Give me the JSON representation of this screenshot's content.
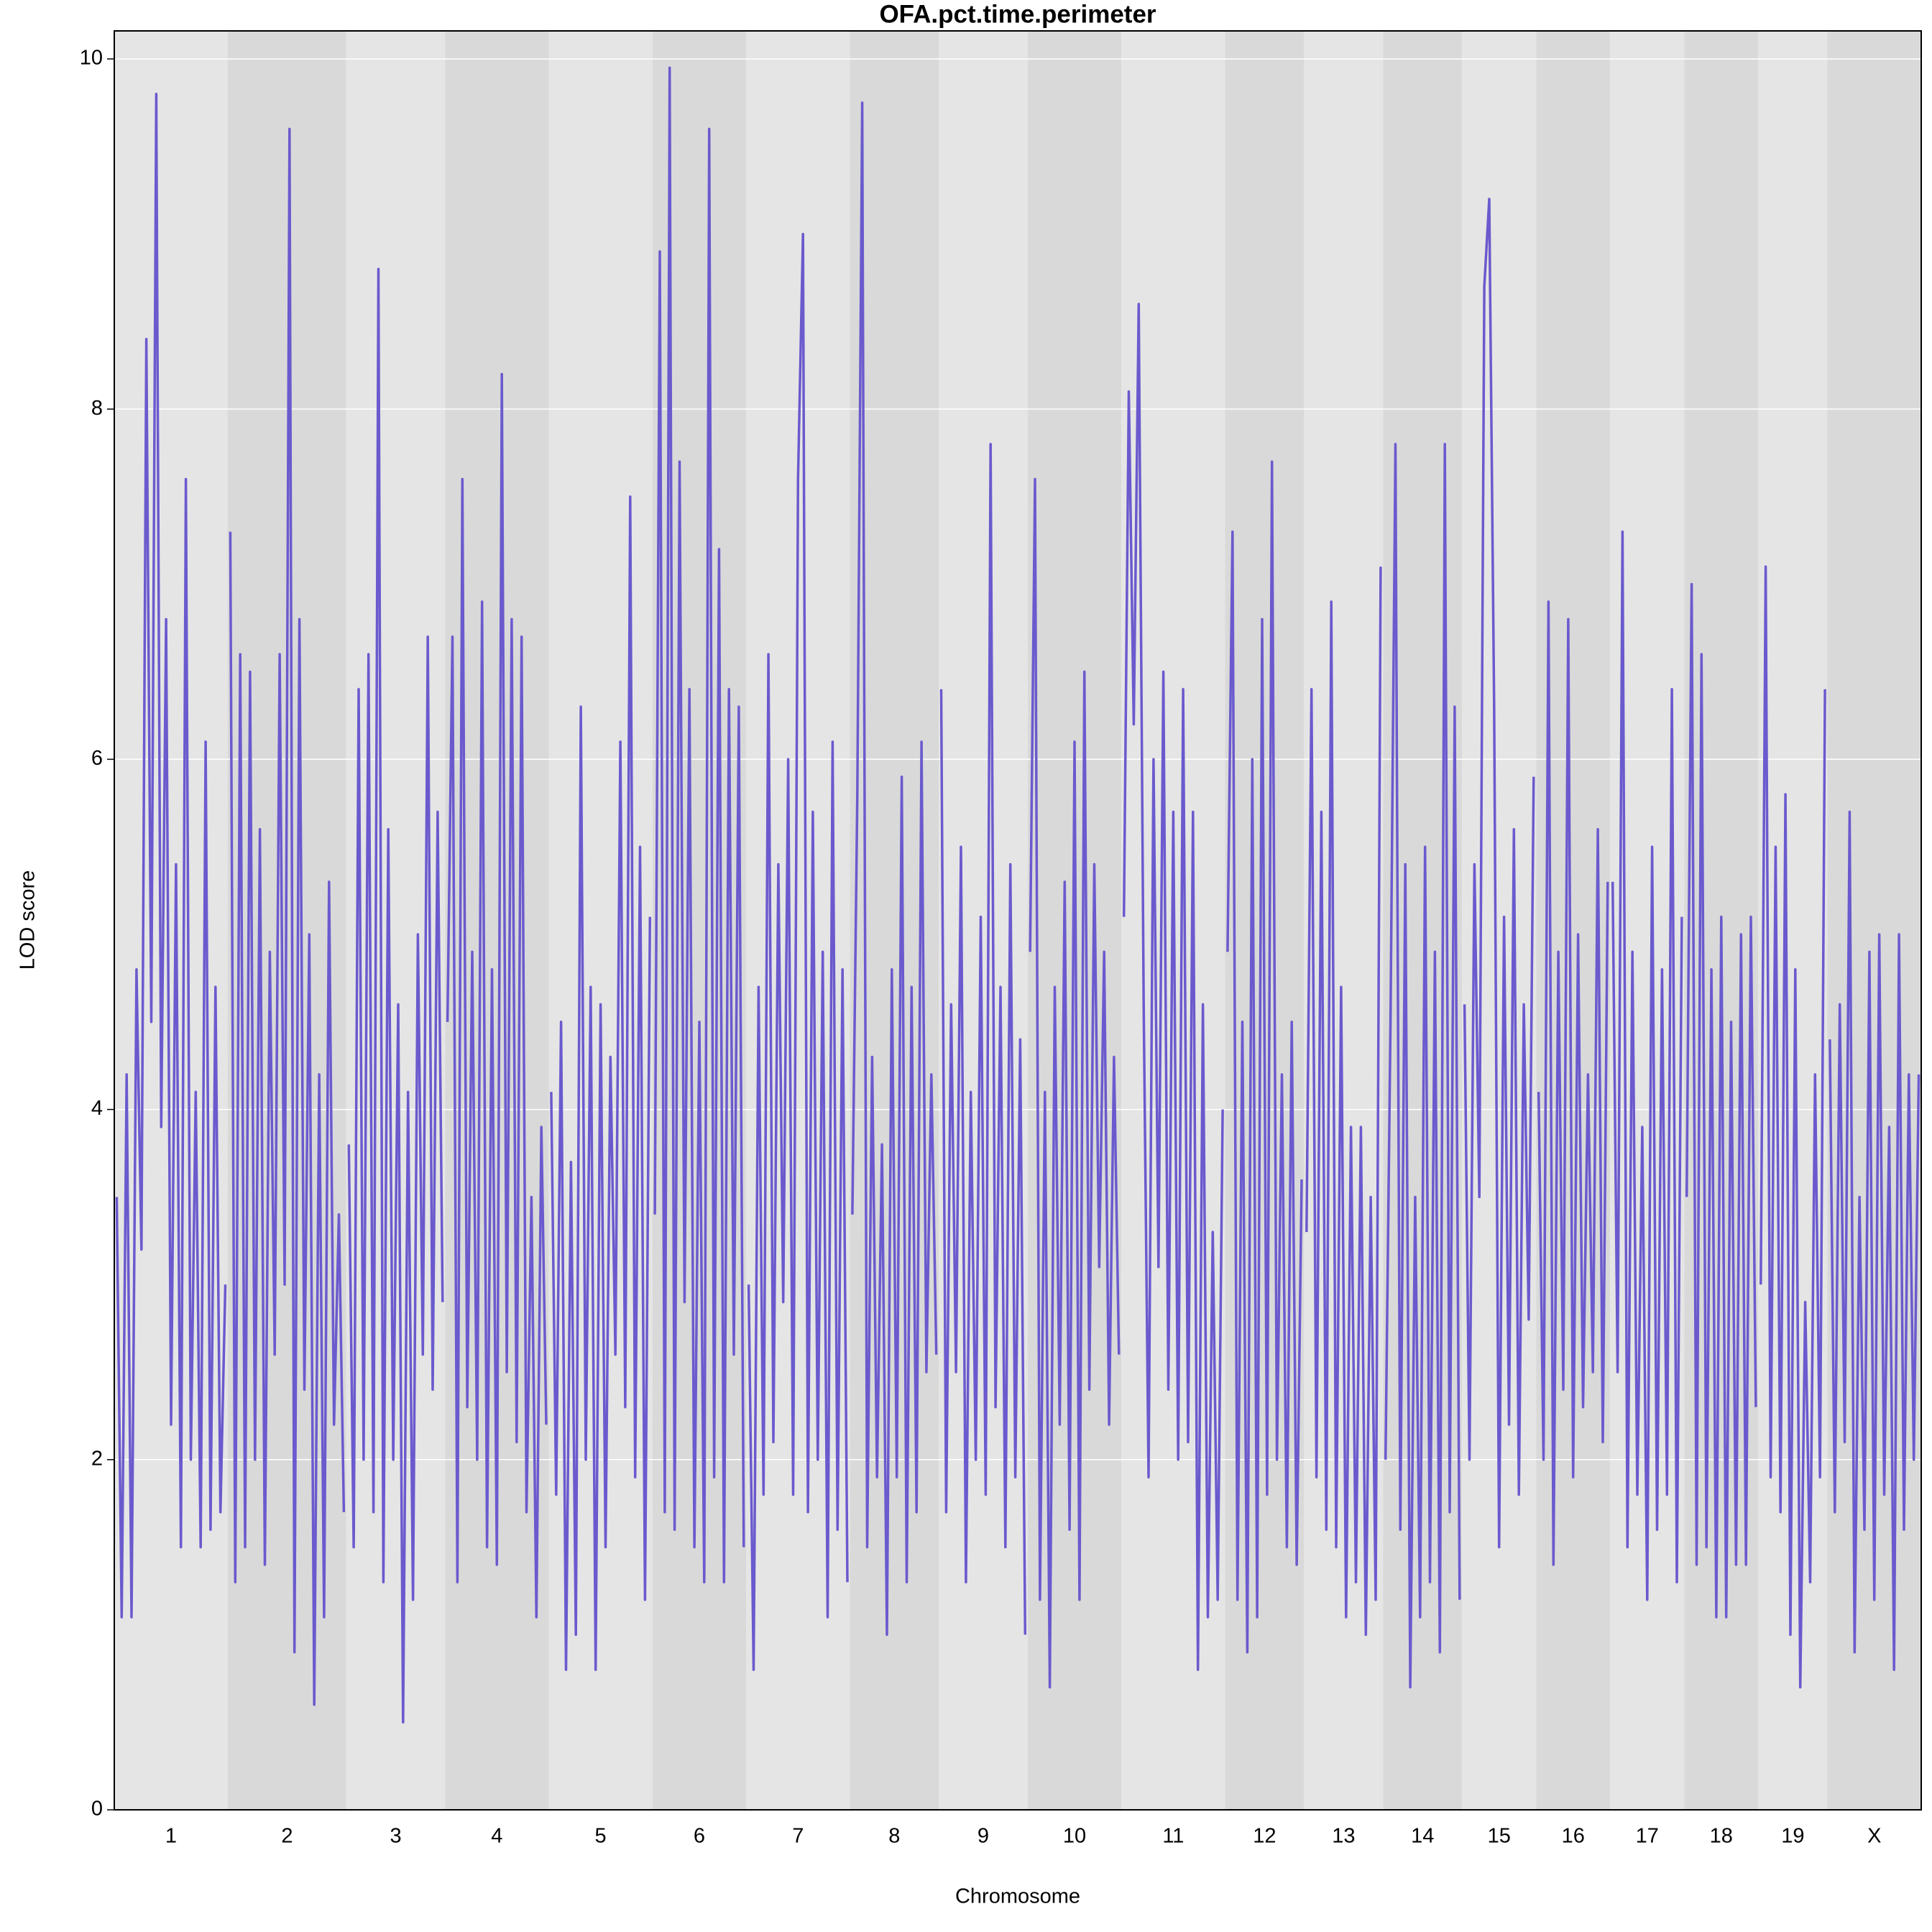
{
  "chart_data": {
    "type": "line",
    "title": "OFA.pct.time.perimeter",
    "x_label": "Chromosome",
    "y_label": "LOD score",
    "color": "#6a5acd",
    "grid": true,
    "ylim": [
      0,
      10.16
    ],
    "yticks": [
      0,
      2,
      4,
      6,
      8,
      10
    ],
    "chromosomes": [
      {
        "label": "1",
        "values": [
          3.5,
          1.1,
          4.2,
          1.1,
          4.8,
          3.2,
          8.4,
          4.5,
          9.8,
          3.9,
          6.8,
          2.2,
          5.4,
          1.5,
          7.6,
          2.0,
          4.1,
          1.5,
          6.1,
          1.6,
          4.7,
          1.7,
          3.0
        ]
      },
      {
        "label": "2",
        "values": [
          7.3,
          1.3,
          6.6,
          1.5,
          6.5,
          2.0,
          5.6,
          1.4,
          4.9,
          2.6,
          6.6,
          3.0,
          9.6,
          0.9,
          6.8,
          2.4,
          5.0,
          0.6,
          4.2,
          1.1,
          5.3,
          2.2,
          3.4,
          1.7
        ]
      },
      {
        "label": "3",
        "values": [
          3.8,
          1.5,
          6.4,
          2.0,
          6.6,
          1.7,
          8.8,
          1.3,
          5.6,
          2.0,
          4.6,
          0.5,
          4.1,
          1.2,
          5.0,
          2.6,
          6.7,
          2.4,
          5.7,
          2.9
        ]
      },
      {
        "label": "4",
        "values": [
          4.5,
          6.7,
          1.3,
          7.6,
          2.3,
          4.9,
          2.0,
          6.9,
          1.5,
          4.8,
          1.4,
          8.2,
          2.5,
          6.8,
          2.1,
          6.7,
          1.7,
          3.5,
          1.1,
          3.9,
          2.2
        ]
      },
      {
        "label": "5",
        "values": [
          4.1,
          1.8,
          4.5,
          0.8,
          3.7,
          1.0,
          6.3,
          2.0,
          4.7,
          0.8,
          4.6,
          1.5,
          4.3,
          2.6,
          6.1,
          2.3,
          7.5,
          1.9,
          5.5,
          1.2,
          5.1
        ]
      },
      {
        "label": "6",
        "values": [
          3.4,
          8.9,
          1.7,
          9.95,
          1.6,
          7.7,
          2.9,
          6.4,
          1.5,
          4.5,
          1.3,
          9.6,
          1.9,
          7.2,
          1.3,
          6.4,
          2.6,
          6.3,
          1.5
        ]
      },
      {
        "label": "7",
        "values": [
          3.0,
          0.8,
          4.7,
          1.8,
          6.6,
          2.1,
          5.4,
          2.9,
          6.0,
          1.8,
          7.6,
          9.0,
          1.7,
          5.7,
          2.0,
          4.9,
          1.1,
          6.1,
          1.6,
          4.8,
          1.3
        ]
      },
      {
        "label": "8",
        "values": [
          3.4,
          5.8,
          9.75,
          1.5,
          4.3,
          1.9,
          3.8,
          1.0,
          4.8,
          1.9,
          5.9,
          1.3,
          4.7,
          1.7,
          6.1,
          2.5,
          4.2,
          2.6
        ]
      },
      {
        "label": "9",
        "values": [
          6.4,
          1.7,
          4.6,
          2.5,
          5.5,
          1.3,
          4.1,
          2.0,
          5.1,
          1.8,
          7.8,
          2.3,
          4.7,
          1.5,
          5.4,
          1.9,
          4.4,
          1.0
        ]
      },
      {
        "label": "10",
        "values": [
          4.9,
          7.6,
          1.2,
          4.1,
          0.7,
          4.7,
          2.2,
          5.3,
          1.6,
          6.1,
          1.2,
          6.5,
          2.4,
          5.4,
          3.1,
          4.9,
          2.2,
          4.3,
          2.6
        ]
      },
      {
        "label": "11",
        "values": [
          5.1,
          8.1,
          6.2,
          8.6,
          4.6,
          1.9,
          6.0,
          3.1,
          6.5,
          2.4,
          5.7,
          2.0,
          6.4,
          2.1,
          5.7,
          0.8,
          4.6,
          1.1,
          3.3,
          1.2,
          4.0
        ]
      },
      {
        "label": "12",
        "values": [
          4.9,
          7.3,
          1.2,
          4.5,
          0.9,
          6.0,
          1.1,
          6.8,
          1.8,
          7.7,
          2.0,
          4.2,
          1.5,
          4.5,
          1.4,
          3.6
        ]
      },
      {
        "label": "13",
        "values": [
          3.3,
          6.4,
          1.9,
          5.7,
          1.6,
          6.9,
          1.5,
          4.7,
          1.1,
          3.9,
          1.3,
          3.9,
          1.0,
          3.5,
          1.2,
          7.1
        ]
      },
      {
        "label": "14",
        "values": [
          2.0,
          4.5,
          7.8,
          1.6,
          5.4,
          0.7,
          3.5,
          1.1,
          5.5,
          1.3,
          4.9,
          0.9,
          7.8,
          1.7,
          6.3,
          1.2
        ]
      },
      {
        "label": "15",
        "values": [
          4.6,
          2.0,
          5.4,
          3.5,
          8.7,
          9.2,
          6.3,
          1.5,
          5.1,
          2.2,
          5.6,
          1.8,
          4.6,
          2.8,
          5.9
        ]
      },
      {
        "label": "16",
        "values": [
          4.1,
          2.0,
          6.9,
          1.4,
          4.9,
          2.4,
          6.8,
          1.9,
          5.0,
          2.3,
          4.2,
          2.5,
          5.6,
          2.1,
          5.3
        ]
      },
      {
        "label": "17",
        "values": [
          5.3,
          2.5,
          7.3,
          1.5,
          4.9,
          1.8,
          3.9,
          1.2,
          5.5,
          1.6,
          4.8,
          1.8,
          6.4,
          1.3,
          5.1
        ]
      },
      {
        "label": "18",
        "values": [
          3.5,
          7.0,
          1.4,
          6.6,
          1.5,
          4.8,
          1.1,
          5.1,
          1.1,
          4.5,
          1.4,
          5.0,
          1.4,
          5.1,
          2.3
        ]
      },
      {
        "label": "19",
        "values": [
          3.0,
          7.1,
          1.9,
          5.5,
          1.7,
          5.8,
          1.0,
          4.8,
          0.7,
          2.9,
          1.3,
          4.2,
          1.9,
          6.4
        ]
      },
      {
        "label": "X",
        "values": [
          4.4,
          1.7,
          4.6,
          2.1,
          5.7,
          0.9,
          3.5,
          1.6,
          4.9,
          1.2,
          5.0,
          1.8,
          3.9,
          0.8,
          5.0,
          1.6,
          4.2,
          2.0,
          4.2
        ]
      }
    ]
  }
}
